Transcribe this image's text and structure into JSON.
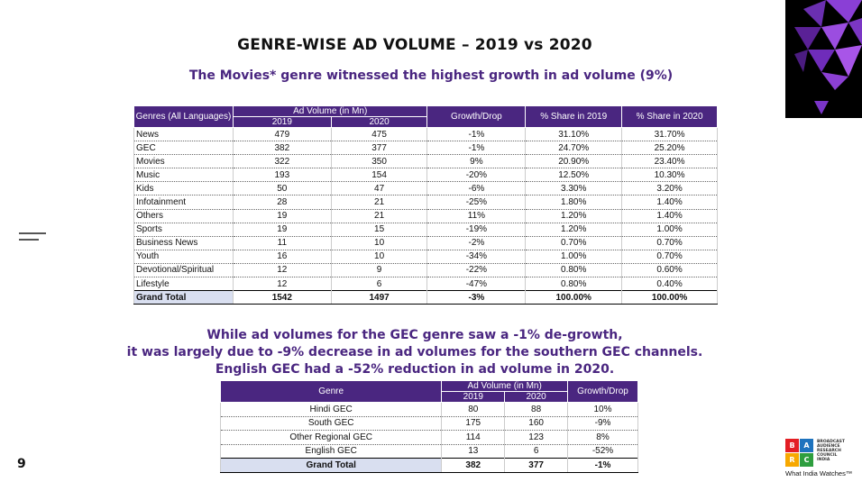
{
  "title": "GENRE-WISE AD VOLUME – 2019 vs 2020",
  "subtitle": "The Movies* genre witnessed the highest growth in ad volume (9%)",
  "table1": {
    "headers": {
      "genre": "Genres (All Languages)",
      "ad_volume": "Ad Volume (in Mn)",
      "y2019": "2019",
      "y2020": "2020",
      "growth": "Growth/Drop",
      "share2019": "% Share in 2019",
      "share2020": "% Share in 2020"
    },
    "rows": [
      [
        "News",
        "479",
        "475",
        "-1%",
        "31.10%",
        "31.70%"
      ],
      [
        "GEC",
        "382",
        "377",
        "-1%",
        "24.70%",
        "25.20%"
      ],
      [
        "Movies",
        "322",
        "350",
        "9%",
        "20.90%",
        "23.40%"
      ],
      [
        "Music",
        "193",
        "154",
        "-20%",
        "12.50%",
        "10.30%"
      ],
      [
        "Kids",
        "50",
        "47",
        "-6%",
        "3.30%",
        "3.20%"
      ],
      [
        "Infotainment",
        "28",
        "21",
        "-25%",
        "1.80%",
        "1.40%"
      ],
      [
        "Others",
        "19",
        "21",
        "11%",
        "1.20%",
        "1.40%"
      ],
      [
        "Sports",
        "19",
        "15",
        "-19%",
        "1.20%",
        "1.00%"
      ],
      [
        "Business News",
        "11",
        "10",
        "-2%",
        "0.70%",
        "0.70%"
      ],
      [
        "Youth",
        "16",
        "10",
        "-34%",
        "1.00%",
        "0.70%"
      ],
      [
        "Devotional/Spiritual",
        "12",
        "9",
        "-22%",
        "0.80%",
        "0.60%"
      ],
      [
        "Lifestyle",
        "12",
        "6",
        "-47%",
        "0.80%",
        "0.40%"
      ]
    ],
    "total": [
      "Grand Total",
      "1542",
      "1497",
      "-3%",
      "100.00%",
      "100.00%"
    ]
  },
  "mid_text": [
    "While ad volumes for the GEC genre saw a -1% de-growth,",
    "it was largely due to -9% decrease in ad volumes for the southern GEC channels.",
    "English GEC had a -52% reduction in ad volume in 2020."
  ],
  "table2": {
    "headers": {
      "genre": "Genre",
      "ad_volume": "Ad Volume (in Mn)",
      "y2019": "2019",
      "y2020": "2020",
      "growth": "Growth/Drop"
    },
    "rows": [
      [
        "Hindi GEC",
        "80",
        "88",
        "10%"
      ],
      [
        "South GEC",
        "175",
        "160",
        "-9%"
      ],
      [
        "Other Regional GEC",
        "114",
        "123",
        "8%"
      ],
      [
        "English GEC",
        "13",
        "6",
        "-52%"
      ]
    ],
    "total": [
      "Grand Total",
      "382",
      "377",
      "-1%"
    ]
  },
  "page_number": "9",
  "logo": {
    "letters": [
      "B",
      "A",
      "R",
      "C"
    ],
    "letter_colors": [
      "#e31e24",
      "#1e73be",
      "#f7a800",
      "#2e9e3f"
    ],
    "words": [
      "BROADCAST",
      "AUDIENCE",
      "RESEARCH",
      "COUNCIL",
      "INDIA"
    ],
    "tagline": "What India Watches™"
  },
  "colors": {
    "accent": "#4a2680",
    "total_highlight": "#d9dff0"
  }
}
